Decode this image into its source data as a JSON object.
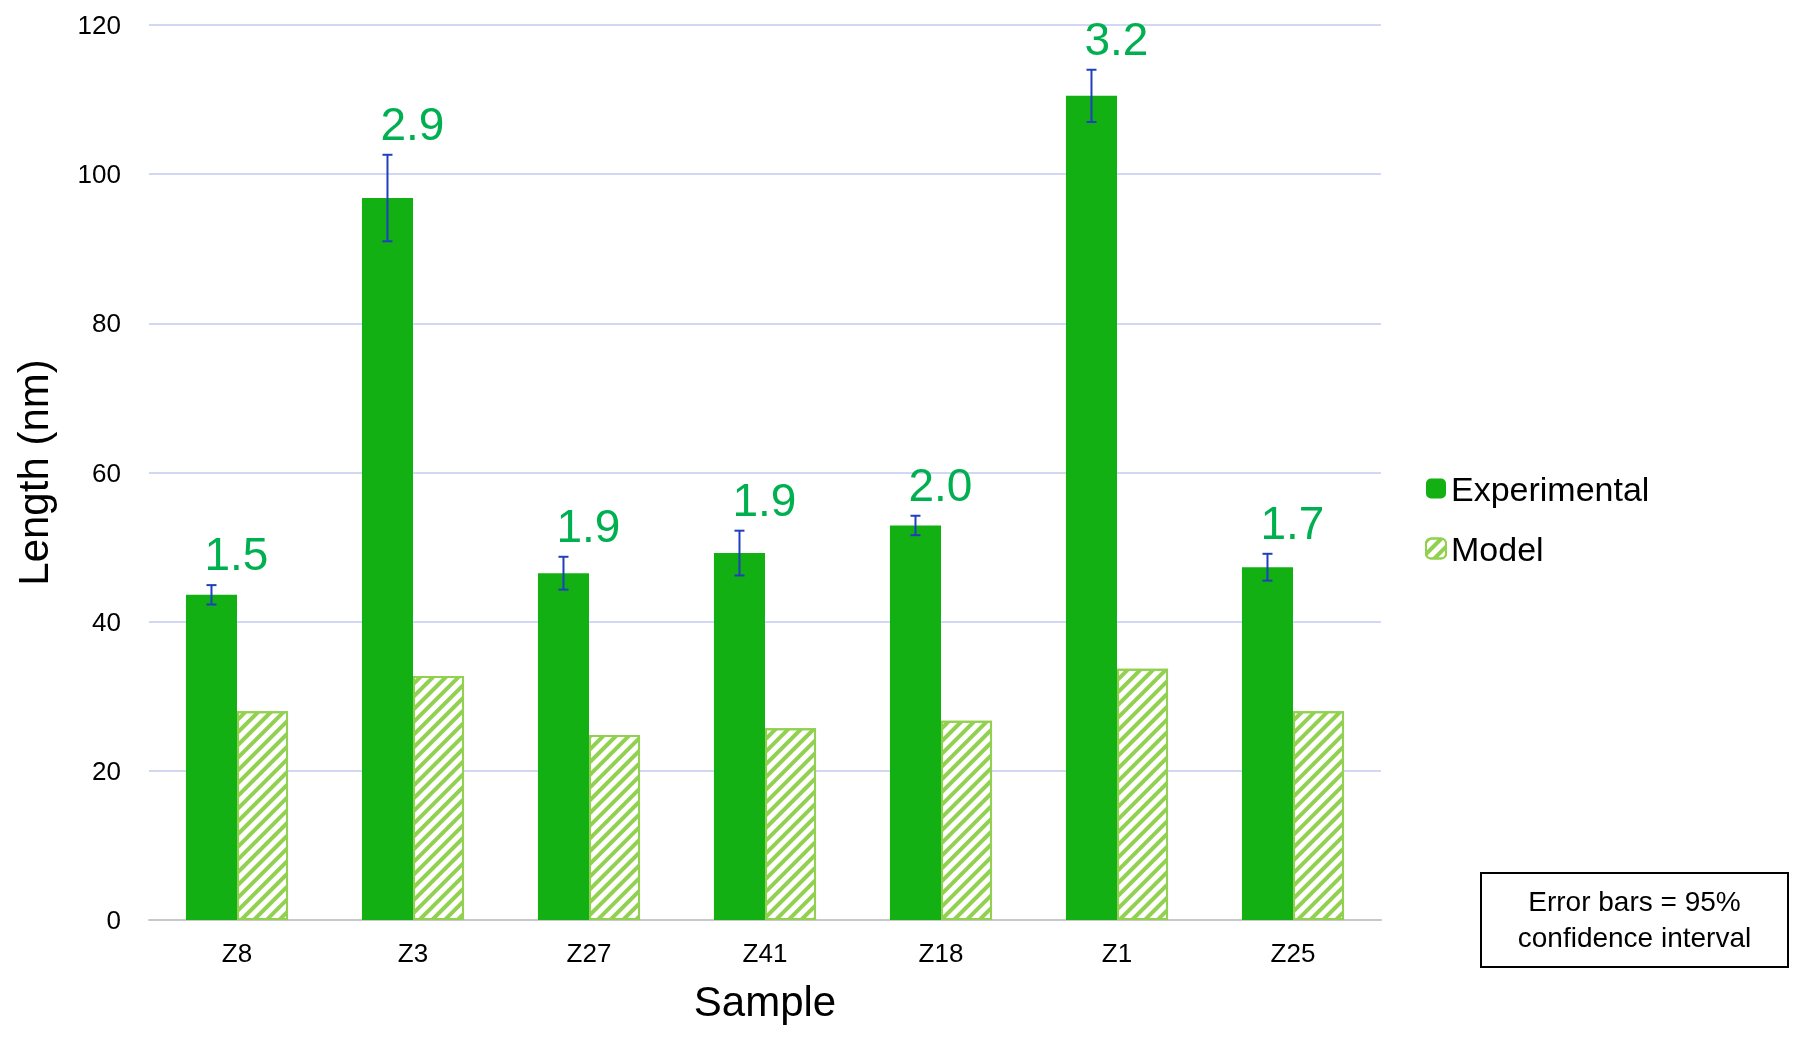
{
  "chart_data": {
    "type": "bar",
    "xlabel": "Sample",
    "ylabel": "Length (nm)",
    "categories": [
      "Z8",
      "Z3",
      "Z27",
      "Z41",
      "Z18",
      "Z1",
      "Z25"
    ],
    "series": [
      {
        "name": "Experimental",
        "color": "#12b012",
        "values": [
          43.6,
          96.8,
          46.5,
          49.2,
          52.9,
          110.5,
          47.3
        ],
        "errors": [
          1.3,
          5.8,
          2.2,
          3.0,
          1.3,
          3.5,
          1.8
        ]
      },
      {
        "name": "Model",
        "color": "#92d050",
        "values": [
          28.0,
          32.7,
          24.8,
          25.7,
          26.7,
          33.7,
          28.0
        ]
      }
    ],
    "ylim": [
      0,
      120
    ],
    "yticks": [
      0,
      20,
      40,
      60,
      80,
      100,
      120
    ],
    "grid": "y",
    "legend": "right",
    "annotations": [
      "Error bars = 95% confidence interval",
      {
        "text": "1.5",
        "x": "Z8",
        "y": 43.6
      },
      {
        "text": "2.9",
        "x": "Z3",
        "y": 96.8
      },
      {
        "text": "1.9",
        "x": "Z27",
        "y": 46.5
      },
      {
        "text": "1.9",
        "x": "Z41",
        "y": 49.2
      },
      {
        "text": "2.0",
        "x": "Z18",
        "y": 52.9
      },
      {
        "text": "3.2",
        "x": "Z1",
        "y": 110.5
      },
      {
        "text": "1.7",
        "x": "Z25",
        "y": 47.3
      }
    ]
  }
}
